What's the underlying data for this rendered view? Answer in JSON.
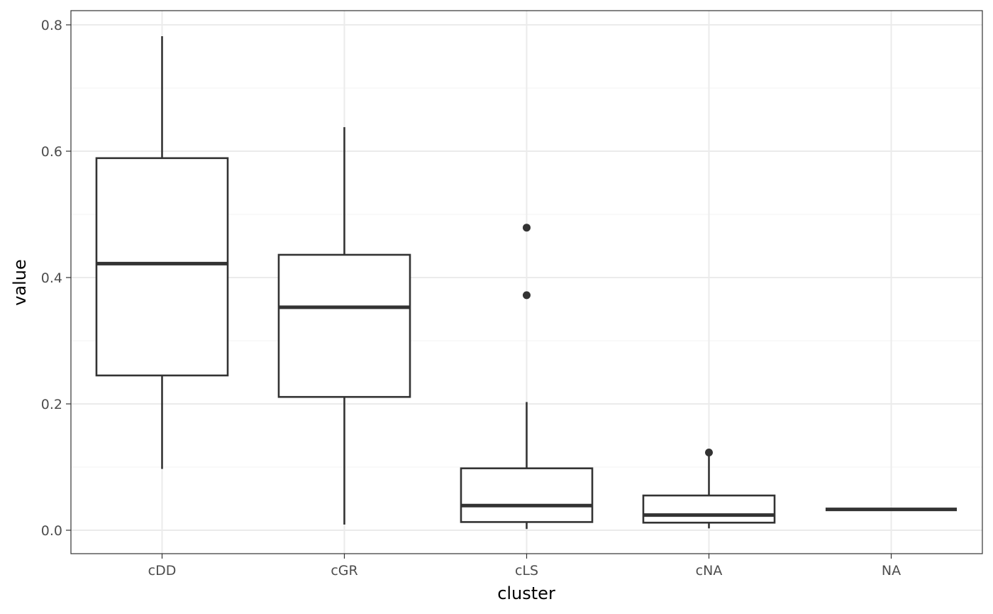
{
  "chart_data": {
    "type": "box",
    "xlabel": "cluster",
    "ylabel": "value",
    "ylim": [
      -0.038,
      0.82
    ],
    "yticks": [
      0.0,
      0.2,
      0.4,
      0.6,
      0.8
    ],
    "ytick_labels": [
      "0.0",
      "0.2",
      "0.4",
      "0.6",
      "0.8"
    ],
    "minor_yticks": [
      0.1,
      0.3,
      0.5,
      0.7
    ],
    "grid": true,
    "categories": [
      "cDD",
      "cGR",
      "cLS",
      "cNA",
      "NA"
    ],
    "boxes": [
      {
        "category": "cDD",
        "whisker_low": 0.097,
        "q1": 0.245,
        "median": 0.422,
        "q3": 0.589,
        "whisker_high": 0.782,
        "outliers": []
      },
      {
        "category": "cGR",
        "whisker_low": 0.009,
        "q1": 0.211,
        "median": 0.353,
        "q3": 0.436,
        "whisker_high": 0.638,
        "outliers": []
      },
      {
        "category": "cLS",
        "whisker_low": 0.002,
        "q1": 0.013,
        "median": 0.039,
        "q3": 0.098,
        "whisker_high": 0.203,
        "outliers": [
          0.479,
          0.372
        ]
      },
      {
        "category": "cNA",
        "whisker_low": 0.003,
        "q1": 0.012,
        "median": 0.024,
        "q3": 0.055,
        "whisker_high": 0.122,
        "outliers": [
          0.123
        ]
      },
      {
        "category": "NA",
        "whisker_low": 0.033,
        "q1": 0.033,
        "median": 0.033,
        "q3": 0.033,
        "whisker_high": 0.033,
        "outliers": []
      }
    ],
    "colors": {
      "box_line": "#333333",
      "grid_major": "#ebebeb",
      "grid_minor": "#f5f5f5",
      "panel_border": "#333333",
      "tick_text": "#4d4d4d"
    }
  }
}
